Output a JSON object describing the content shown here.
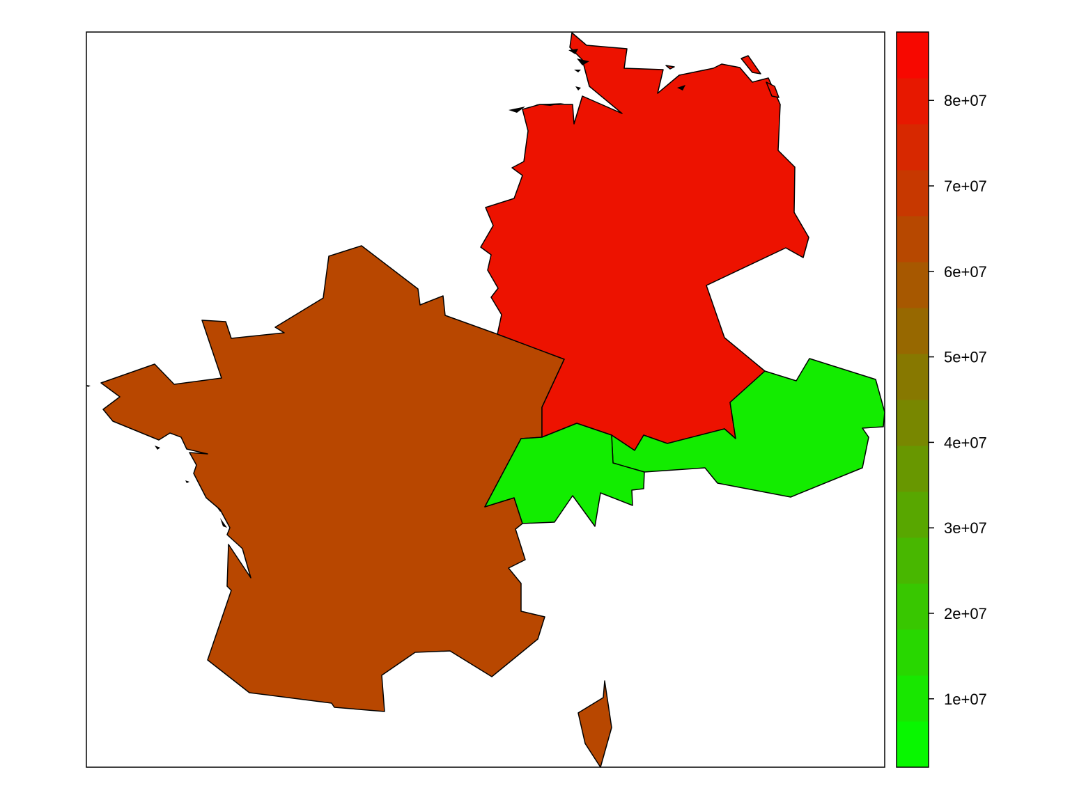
{
  "map": {
    "regions": [
      {
        "name": "France",
        "value": 64000000
      },
      {
        "name": "Germany",
        "value": 82000000
      },
      {
        "name": "Switzerland",
        "value": 8000000
      },
      {
        "name": "Austria",
        "value": 8500000
      }
    ]
  },
  "colorbar": {
    "min": 2000000,
    "max": 88000000,
    "color_low": "#00ff00",
    "color_high": "#ff0000",
    "ticks": [
      {
        "value": 10000000,
        "label": "1e+07"
      },
      {
        "value": 20000000,
        "label": "2e+07"
      },
      {
        "value": 30000000,
        "label": "3e+07"
      },
      {
        "value": 40000000,
        "label": "4e+07"
      },
      {
        "value": 50000000,
        "label": "5e+07"
      },
      {
        "value": 60000000,
        "label": "6e+07"
      },
      {
        "value": 70000000,
        "label": "7e+07"
      },
      {
        "value": 80000000,
        "label": "8e+07"
      }
    ]
  }
}
